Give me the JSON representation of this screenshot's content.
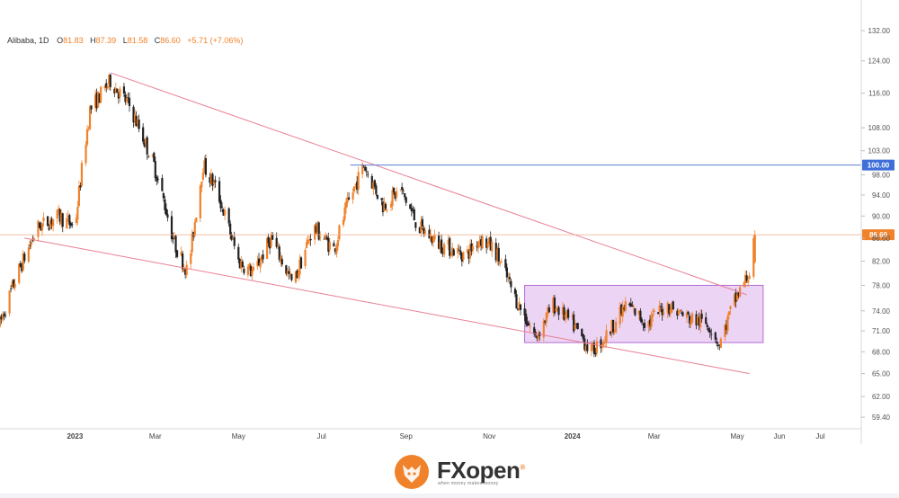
{
  "colors": {
    "up": "#f0822b",
    "down": "#222222",
    "trendline": "#e87f93",
    "resistance": "#5a7fd1",
    "price_line": "#f2a98a",
    "zone_fill": "#e5c5f2",
    "zone_stroke": "#b46cd2",
    "last_price_badge": "#f0822b",
    "resistance_badge": "#3f6ed8",
    "brand_orange": "#f0822b"
  },
  "brand": {
    "name_prefix": "FX",
    "name_suffix": "open",
    "registered": "®",
    "tagline": "when money makes money",
    "logo_icon": "fox-head-icon"
  },
  "chart_data": {
    "type": "candlestick",
    "symbol": "Alibaba",
    "interval": "1D",
    "ohlc_header": {
      "o_label": "O",
      "o_value": "81.83",
      "h_label": "H",
      "h_value": "87.39",
      "l_label": "L",
      "l_value": "81.58",
      "c_label": "C",
      "c_value": "86.60",
      "change": "+5.71 (+7.06%)"
    },
    "y_scale": "log",
    "ylim": [
      58,
      133
    ],
    "y_ticks": [
      "132.00",
      "124.00",
      "116.00",
      "108.00",
      "103.00",
      "98.00",
      "94.00",
      "90.00",
      "86.00",
      "82.00",
      "78.00",
      "74.00",
      "71.00",
      "68.00",
      "65.00",
      "62.00",
      "59.40"
    ],
    "x_ticks": [
      {
        "label": "2023",
        "date": "2023-01-01",
        "bold": true
      },
      {
        "label": "Mar",
        "date": "2023-03-01",
        "bold": false
      },
      {
        "label": "May",
        "date": "2023-05-01",
        "bold": false
      },
      {
        "label": "Jul",
        "date": "2023-07-01",
        "bold": false
      },
      {
        "label": "Sep",
        "date": "2023-09-01",
        "bold": false
      },
      {
        "label": "Nov",
        "date": "2023-11-01",
        "bold": false
      },
      {
        "label": "2024",
        "date": "2024-01-01",
        "bold": true
      },
      {
        "label": "Mar",
        "date": "2024-03-01",
        "bold": false
      },
      {
        "label": "May",
        "date": "2024-05-01",
        "bold": false
      },
      {
        "label": "Jun",
        "date": "2024-06-01",
        "bold": false
      },
      {
        "label": "Jul",
        "date": "2024-07-01",
        "bold": false
      }
    ],
    "xlim": [
      "2022-11-07",
      "2024-07-31"
    ],
    "price_path": [
      [
        "2022-11-07",
        72
      ],
      [
        "2022-11-20",
        80
      ],
      [
        "2022-12-05",
        88
      ],
      [
        "2022-12-20",
        90
      ],
      [
        "2023-01-01",
        88
      ],
      [
        "2023-01-12",
        112
      ],
      [
        "2023-01-27",
        119
      ],
      [
        "2023-02-10",
        113
      ],
      [
        "2023-02-28",
        100
      ],
      [
        "2023-03-15",
        85
      ],
      [
        "2023-03-25",
        80
      ],
      [
        "2023-04-05",
        100
      ],
      [
        "2023-04-15",
        95
      ],
      [
        "2023-05-01",
        82
      ],
      [
        "2023-05-12",
        80
      ],
      [
        "2023-05-25",
        86
      ],
      [
        "2023-06-10",
        78
      ],
      [
        "2023-06-25",
        88
      ],
      [
        "2023-07-10",
        84
      ],
      [
        "2023-07-20",
        92
      ],
      [
        "2023-08-01",
        100
      ],
      [
        "2023-08-15",
        92
      ],
      [
        "2023-08-28",
        95
      ],
      [
        "2023-09-10",
        88
      ],
      [
        "2023-09-25",
        85
      ],
      [
        "2023-10-15",
        83
      ],
      [
        "2023-10-25",
        86
      ],
      [
        "2023-11-05",
        84
      ],
      [
        "2023-11-20",
        76
      ],
      [
        "2023-12-05",
        70
      ],
      [
        "2023-12-18",
        75
      ],
      [
        "2024-01-01",
        72
      ],
      [
        "2024-01-15",
        68
      ],
      [
        "2024-01-25",
        70
      ],
      [
        "2024-02-10",
        75
      ],
      [
        "2024-02-25",
        72
      ],
      [
        "2024-03-10",
        75
      ],
      [
        "2024-03-25",
        73
      ],
      [
        "2024-04-10",
        72
      ],
      [
        "2024-04-18",
        69
      ],
      [
        "2024-04-28",
        75
      ],
      [
        "2024-05-05",
        78
      ],
      [
        "2024-05-10",
        80
      ],
      [
        "2024-05-14",
        86.6
      ]
    ],
    "last_price": 86.6,
    "last_price_label": "86.60",
    "resistance": {
      "value": 100.0,
      "label": "100.00",
      "start": "2023-07-22"
    },
    "upper_trendline": {
      "start": [
        "2023-01-27",
        121
      ],
      "end": [
        "2024-05-08",
        76.5
      ]
    },
    "lower_trendline": {
      "start": [
        "2022-11-25",
        86
      ],
      "end": [
        "2024-05-10",
        65
      ]
    },
    "consolidation_zone": {
      "start": "2023-11-27",
      "end": "2024-05-20",
      "top": 78.0,
      "bottom": 69.3
    }
  }
}
